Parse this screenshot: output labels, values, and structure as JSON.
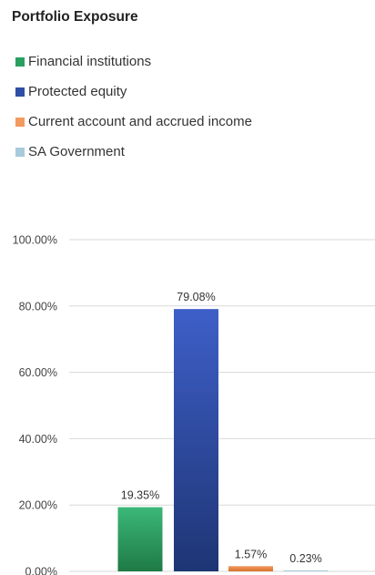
{
  "chart_data": {
    "type": "bar",
    "title": "Portfolio Exposure",
    "xlabel": "",
    "ylabel": "",
    "categories": [
      "Financial institutions",
      "Protected equity",
      "Current account and accrued income",
      "SA Government"
    ],
    "values": [
      19.35,
      79.08,
      1.57,
      0.23
    ],
    "value_labels": [
      "19.35%",
      "79.08%",
      "1.57%",
      "0.23%"
    ],
    "ylim": [
      0,
      100
    ],
    "y_ticks": [
      0,
      20,
      40,
      60,
      80,
      100
    ],
    "y_tick_labels": [
      "0.00%",
      "20.00%",
      "40.00%",
      "60.00%",
      "80.00%",
      "100.00%"
    ],
    "grid": true,
    "legend_position": "top-left",
    "colors": {
      "Financial institutions": [
        "#3bb878",
        "#1f7a45"
      ],
      "Protected equity": [
        "#3e5fc8",
        "#1e3574"
      ],
      "Current account and accrued income": [
        "#f39a5f",
        "#d7702c"
      ],
      "SA Government": [
        "#c0dcea",
        "#9ec4d8"
      ]
    },
    "legend_swatch_colors": [
      "#2aa060",
      "#2f4ea6",
      "#f39a5f",
      "#a8cbdc"
    ]
  }
}
